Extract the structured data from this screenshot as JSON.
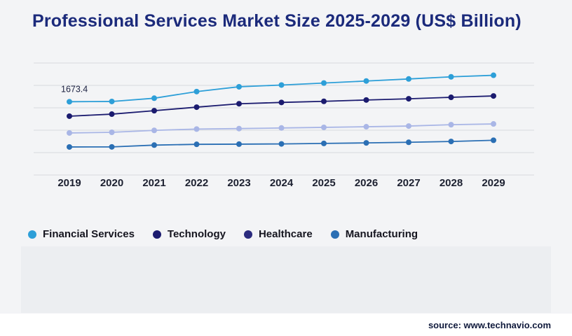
{
  "title": "Professional Services Market Size 2025-2029 (US$ Billion)",
  "source": {
    "text": "source: www.technavio.com"
  },
  "colors": {
    "background": "#f3f4f6",
    "title": "#1b2a7b",
    "grid": "#d7dade",
    "tick_label": "#1c2030",
    "legend_text": "#15151f",
    "annotation": "#1b2040",
    "source_text": "#101a3c",
    "footer_panel": "#eceef1"
  },
  "chart_data": {
    "type": "line",
    "title": "Professional Services Market Size 2025-2029 (US$ Billion)",
    "xlabel": "",
    "ylabel": "",
    "categories": [
      "2019",
      "2020",
      "2021",
      "2022",
      "2023",
      "2024",
      "2025",
      "2026",
      "2027",
      "2028",
      "2029"
    ],
    "series": [
      {
        "name": "Financial Services",
        "color": "#2d9fd8",
        "line_color": "#2d9fd8",
        "values": [
          1673.4,
          1675.2,
          1698.5,
          1745.8,
          1780.2,
          1792.6,
          1806.9,
          1821.4,
          1836.0,
          1851.2,
          1862.3
        ]
      },
      {
        "name": "Technology",
        "color": "#1b1b6f",
        "line_color": "#1b1b6f",
        "values": [
          1570.1,
          1584.7,
          1609.3,
          1634.6,
          1658.9,
          1668.4,
          1676.2,
          1685.8,
          1694.5,
          1704.9,
          1714.6
        ]
      },
      {
        "name": "Healthcare",
        "color": "#2b2b7e",
        "line_color": "#a9b6e6",
        "values": [
          1450.3,
          1455.0,
          1468.7,
          1478.2,
          1481.5,
          1486.0,
          1490.3,
          1494.8,
          1499.6,
          1509.4,
          1514.8
        ]
      },
      {
        "name": "Manufacturing",
        "color": "#2b6fb4",
        "line_color": "#2b6fb4",
        "values": [
          1350.2,
          1350.8,
          1363.5,
          1369.1,
          1370.4,
          1372.0,
          1375.6,
          1379.3,
          1383.7,
          1389.5,
          1398.2
        ]
      }
    ],
    "annotation": {
      "series": "Financial Services",
      "index": 0,
      "text": "1673.4"
    },
    "ylim": [
      1150,
      1950
    ],
    "gridline_count": 6,
    "grid": "horizontal",
    "legend_position": "bottom"
  }
}
